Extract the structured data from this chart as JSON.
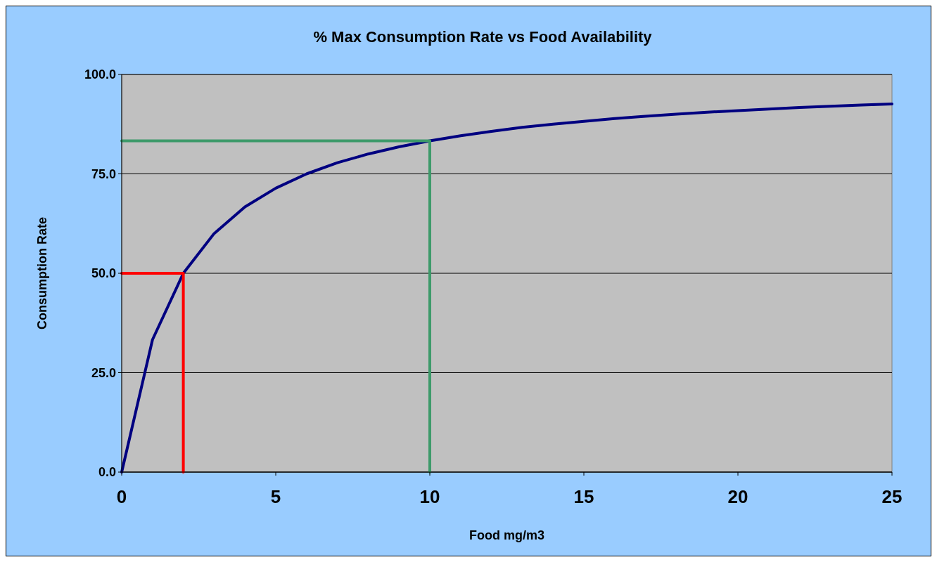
{
  "chart_data": {
    "type": "line",
    "title": "% Max Consumption Rate vs Food Availability",
    "xlabel": "Food mg/m3",
    "ylabel": "Consumption Rate",
    "x": [
      0,
      1,
      2,
      3,
      4,
      5,
      6,
      7,
      8,
      9,
      10,
      11,
      12,
      13,
      14,
      15,
      16,
      17,
      18,
      19,
      20,
      21,
      22,
      23,
      24,
      25
    ],
    "series": [
      {
        "color": "#000080",
        "values": [
          0,
          33.3,
          50,
          60,
          66.7,
          71.4,
          75,
          77.8,
          80,
          81.8,
          83.3,
          84.6,
          85.7,
          86.7,
          87.5,
          88.2,
          88.9,
          89.5,
          90,
          90.5,
          90.9,
          91.3,
          91.7,
          92,
          92.3,
          92.6
        ]
      },
      {
        "color": "#ff0000",
        "x": [
          0,
          2,
          2
        ],
        "values": [
          50,
          50,
          0
        ]
      },
      {
        "color": "#3d9a6a",
        "x": [
          0,
          10,
          10
        ],
        "values": [
          83.3,
          83.3,
          0
        ]
      }
    ],
    "xlim": [
      0,
      25
    ],
    "xticks": [
      0,
      5,
      10,
      15,
      20,
      25
    ],
    "ylim": [
      0,
      100
    ],
    "yticks": [
      {
        "value": 0,
        "label": "0.0"
      },
      {
        "value": 25,
        "label": "25.0"
      },
      {
        "value": 50,
        "label": "50.0"
      },
      {
        "value": 75,
        "label": "75.0"
      },
      {
        "value": 100,
        "label": "100.0"
      }
    ],
    "grid": "y"
  }
}
